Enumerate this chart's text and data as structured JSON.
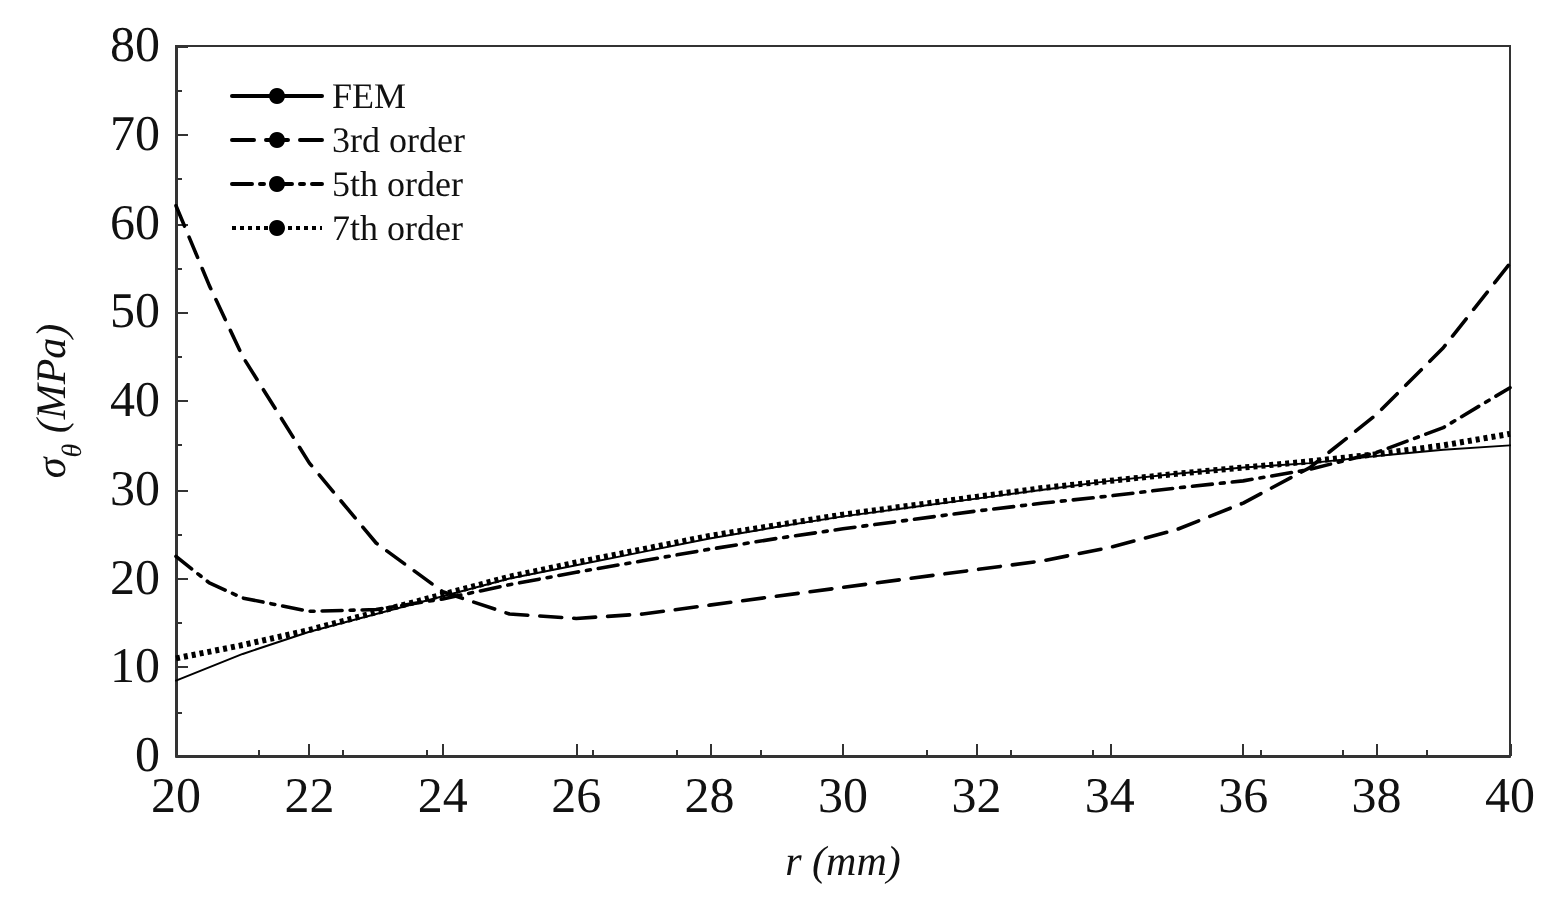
{
  "chart_data": {
    "type": "line",
    "xlabel": "r (mm)",
    "ylabel": "σ$_{θ}$ (MPa)",
    "xlim": [
      20,
      40
    ],
    "xticks": [
      20,
      22,
      24,
      26,
      28,
      30,
      32,
      34,
      36,
      38,
      40
    ],
    "ylim": [
      0,
      80
    ],
    "yticks": [
      0,
      10,
      20,
      30,
      40,
      50,
      60,
      70,
      80
    ],
    "grid": false,
    "legend": "top left",
    "marker": "none",
    "series": [
      {
        "name": "FEM",
        "color": "#000000",
        "line_style": "solid",
        "x": [
          20,
          21,
          22,
          23,
          24,
          25,
          26,
          27,
          28,
          29,
          30,
          31,
          32,
          33,
          34,
          35,
          36,
          37,
          38,
          39,
          40
        ],
        "values": [
          8.5,
          11.5,
          14,
          16,
          18,
          20,
          21.5,
          23,
          24.5,
          25.8,
          27,
          28,
          29,
          30,
          31,
          31.8,
          32.5,
          33,
          33.8,
          34.5,
          35
        ]
      },
      {
        "name": "3rd order",
        "color": "#000000",
        "line_style": "dashed",
        "x": [
          20,
          20.5,
          21,
          22,
          23,
          24,
          25,
          26,
          27,
          28,
          29,
          30,
          31,
          32,
          33,
          34,
          35,
          36,
          37,
          38,
          39,
          40
        ],
        "values": [
          62,
          53,
          45,
          33,
          24,
          18.5,
          16,
          15.5,
          16,
          17,
          18,
          19,
          20,
          21,
          22,
          23.5,
          25.5,
          28.5,
          32.5,
          38.5,
          46,
          55.5
        ]
      },
      {
        "name": "5th order",
        "color": "#000000",
        "line_style": "dashdot",
        "x": [
          20,
          20.5,
          21,
          22,
          23,
          24,
          25,
          26,
          27,
          28,
          29,
          30,
          31,
          32,
          33,
          34,
          35,
          36,
          37,
          38,
          39,
          40
        ],
        "values": [
          22.5,
          19.5,
          17.8,
          16.3,
          16.5,
          17.7,
          19.3,
          20.7,
          22,
          23.3,
          24.5,
          25.6,
          26.6,
          27.6,
          28.5,
          29.3,
          30.2,
          31,
          32.3,
          34.2,
          37,
          41.5
        ]
      },
      {
        "name": "7th order",
        "color": "#000000",
        "line_style": "dotted",
        "x": [
          20,
          21,
          22,
          23,
          24,
          25,
          26,
          27,
          28,
          29,
          30,
          31,
          32,
          33,
          34,
          35,
          36,
          37,
          38,
          39,
          40
        ],
        "values": [
          11,
          12.5,
          14.2,
          16.2,
          18.2,
          20.2,
          21.8,
          23.3,
          24.8,
          26,
          27.2,
          28.2,
          29.2,
          30.2,
          31,
          31.8,
          32.5,
          33.2,
          34,
          35,
          36.3
        ]
      }
    ]
  }
}
